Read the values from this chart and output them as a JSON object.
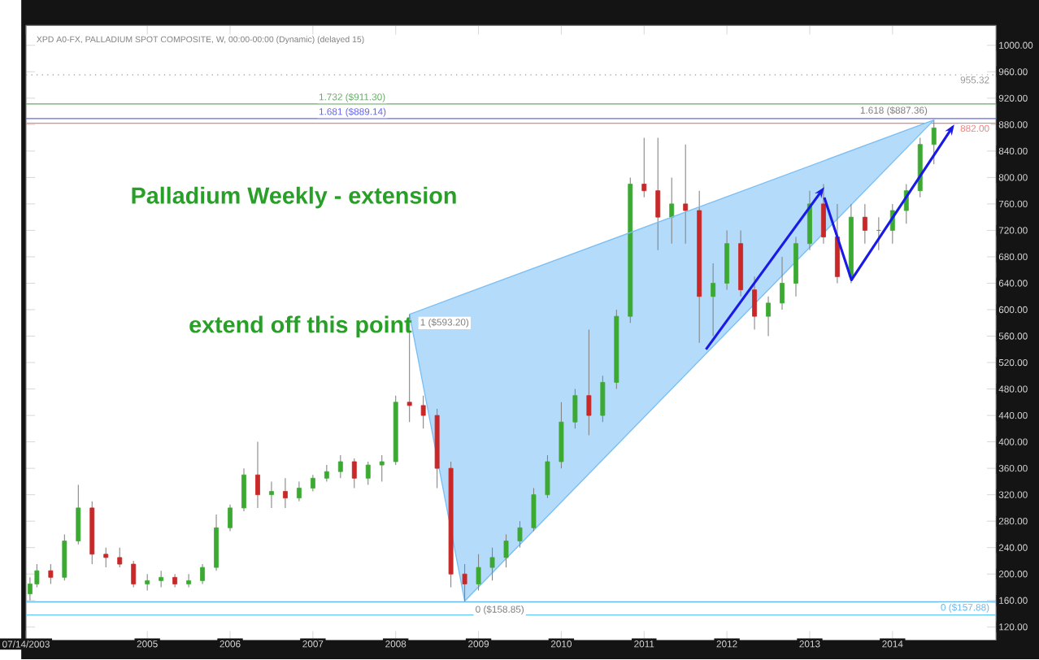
{
  "chart_data": {
    "type": "candlestick",
    "subtitle": "XPD A0-FX, PALLADIUM SPOT COMPOSITE, W, 00:00-00:00 (Dynamic) (delayed 15)",
    "x": [
      "2003-08",
      "2003-09",
      "2003-11",
      "2004-01",
      "2004-03",
      "2004-05",
      "2004-07",
      "2004-09",
      "2004-11",
      "2005-01",
      "2005-03",
      "2005-05",
      "2005-07",
      "2005-09",
      "2005-11",
      "2006-01",
      "2006-03",
      "2006-05",
      "2006-07",
      "2006-09",
      "2006-11",
      "2007-01",
      "2007-03",
      "2007-05",
      "2007-07",
      "2007-09",
      "2007-11",
      "2008-01",
      "2008-03",
      "2008-05",
      "2008-07",
      "2008-09",
      "2008-11",
      "2009-01",
      "2009-03",
      "2009-05",
      "2009-07",
      "2009-09",
      "2009-11",
      "2010-01",
      "2010-03",
      "2010-05",
      "2010-07",
      "2010-09",
      "2010-11",
      "2011-01",
      "2011-03",
      "2011-05",
      "2011-07",
      "2011-09",
      "2011-11",
      "2012-01",
      "2012-03",
      "2012-05",
      "2012-07",
      "2012-09",
      "2012-11",
      "2013-01",
      "2013-03",
      "2013-05",
      "2013-07",
      "2013-09",
      "2013-11",
      "2014-01",
      "2014-03",
      "2014-05",
      "2014-07"
    ],
    "ohlc": [
      [
        170,
        195,
        160,
        185
      ],
      [
        185,
        215,
        180,
        205
      ],
      [
        205,
        215,
        185,
        195
      ],
      [
        195,
        260,
        190,
        250
      ],
      [
        250,
        335,
        245,
        300
      ],
      [
        300,
        310,
        215,
        230
      ],
      [
        230,
        240,
        210,
        225
      ],
      [
        225,
        240,
        210,
        215
      ],
      [
        215,
        220,
        180,
        185
      ],
      [
        185,
        200,
        175,
        190
      ],
      [
        190,
        205,
        180,
        195
      ],
      [
        195,
        200,
        180,
        185
      ],
      [
        185,
        200,
        180,
        190
      ],
      [
        190,
        215,
        185,
        210
      ],
      [
        210,
        290,
        205,
        270
      ],
      [
        270,
        305,
        265,
        300
      ],
      [
        300,
        360,
        295,
        350
      ],
      [
        350,
        400,
        300,
        320
      ],
      [
        320,
        340,
        300,
        325
      ],
      [
        325,
        345,
        300,
        315
      ],
      [
        315,
        340,
        310,
        330
      ],
      [
        330,
        350,
        325,
        345
      ],
      [
        345,
        365,
        340,
        355
      ],
      [
        355,
        380,
        345,
        370
      ],
      [
        370,
        375,
        330,
        345
      ],
      [
        345,
        370,
        335,
        365
      ],
      [
        365,
        380,
        340,
        370
      ],
      [
        370,
        470,
        365,
        460
      ],
      [
        460,
        593.2,
        430,
        455
      ],
      [
        455,
        470,
        420,
        440
      ],
      [
        440,
        450,
        330,
        360
      ],
      [
        360,
        370,
        180,
        200
      ],
      [
        200,
        215,
        158.85,
        185
      ],
      [
        185,
        230,
        175,
        210
      ],
      [
        210,
        240,
        190,
        225
      ],
      [
        225,
        260,
        210,
        250
      ],
      [
        250,
        280,
        240,
        270
      ],
      [
        270,
        330,
        265,
        320
      ],
      [
        320,
        380,
        315,
        370
      ],
      [
        370,
        460,
        360,
        430
      ],
      [
        430,
        480,
        420,
        470
      ],
      [
        470,
        570,
        410,
        440
      ],
      [
        440,
        500,
        430,
        490
      ],
      [
        490,
        600,
        480,
        590
      ],
      [
        590,
        800,
        580,
        790
      ],
      [
        790,
        860,
        770,
        780
      ],
      [
        780,
        860,
        690,
        740
      ],
      [
        740,
        800,
        700,
        760
      ],
      [
        760,
        850,
        700,
        750
      ],
      [
        750,
        780,
        550,
        620
      ],
      [
        620,
        670,
        560,
        640
      ],
      [
        640,
        720,
        630,
        700
      ],
      [
        700,
        720,
        620,
        630
      ],
      [
        630,
        650,
        570,
        590
      ],
      [
        590,
        620,
        560,
        610
      ],
      [
        610,
        680,
        600,
        640
      ],
      [
        640,
        710,
        620,
        700
      ],
      [
        700,
        780,
        690,
        760
      ],
      [
        760,
        790,
        700,
        710
      ],
      [
        710,
        760,
        640,
        650
      ],
      [
        650,
        760,
        640,
        740
      ],
      [
        740,
        760,
        700,
        720
      ],
      [
        720,
        740,
        690,
        720
      ],
      [
        720,
        760,
        700,
        750
      ],
      [
        750,
        790,
        730,
        780
      ],
      [
        780,
        860,
        770,
        850
      ],
      [
        850,
        887.36,
        820,
        875
      ]
    ],
    "series": [
      {
        "type": "line",
        "color": "#78bef5",
        "x": [
          "2008-03",
          "2008-11",
          "2014-07"
        ],
        "values": [
          593,
          624,
          887
        ],
        "upper": [
          593,
          624,
          887
        ],
        "lower": [
          593,
          159,
          887
        ]
      }
    ],
    "xlim": [
      "2003-07-14",
      "2015-04"
    ],
    "xticks": [
      {
        "value": "2003-07-14",
        "label": "07/14/2003"
      },
      {
        "value": "2005-01",
        "label": "2005"
      },
      {
        "value": "2006-01",
        "label": "2006"
      },
      {
        "value": "2007-01",
        "label": "2007"
      },
      {
        "value": "2008-01",
        "label": "2008"
      },
      {
        "value": "2009-01",
        "label": "2009"
      },
      {
        "value": "2010-01",
        "label": "2010"
      },
      {
        "value": "2011-01",
        "label": "2011"
      },
      {
        "value": "2012-01",
        "label": "2012"
      },
      {
        "value": "2013-01",
        "label": "2013"
      },
      {
        "value": "2014-01",
        "label": "2014"
      }
    ],
    "ylim": [
      100,
      1030
    ],
    "yticks": [
      {
        "value": 120,
        "label": "120.00"
      },
      {
        "value": 160,
        "label": "160.00"
      },
      {
        "value": 200,
        "label": "200.00"
      },
      {
        "value": 240,
        "label": "240.00"
      },
      {
        "value": 280,
        "label": "280.00"
      },
      {
        "value": 320,
        "label": "320.00"
      },
      {
        "value": 360,
        "label": "360.00"
      },
      {
        "value": 400,
        "label": "400.00"
      },
      {
        "value": 440,
        "label": "440.00"
      },
      {
        "value": 480,
        "label": "480.00"
      },
      {
        "value": 520,
        "label": "520.00"
      },
      {
        "value": 560,
        "label": "560.00"
      },
      {
        "value": 600,
        "label": "600.00"
      },
      {
        "value": 640,
        "label": "640.00"
      },
      {
        "value": 680,
        "label": "680.00"
      },
      {
        "value": 720,
        "label": "720.00"
      },
      {
        "value": 760,
        "label": "760.00"
      },
      {
        "value": 800,
        "label": "800.00"
      },
      {
        "value": 840,
        "label": "840.00"
      },
      {
        "value": 880,
        "label": "880.00"
      },
      {
        "value": 920,
        "label": "920.00"
      },
      {
        "value": 960,
        "label": "960.00"
      },
      {
        "value": 1000,
        "label": "1000.00"
      }
    ],
    "ref_lines": [
      {
        "axis": "y",
        "value": 882,
        "label": "882.00",
        "color": "#f08080",
        "line_style": "solid"
      },
      {
        "axis": "y",
        "value": 911.3,
        "label": "1.732 ($911.30)",
        "color": "#66aa66",
        "line_style": "solid"
      },
      {
        "axis": "y",
        "value": 955.32,
        "label": "955.32",
        "color": "#999999",
        "line_style": "dotted"
      },
      {
        "axis": "y",
        "value": 889.14,
        "label": "1.681 ($889.14)",
        "color": "#6666ee",
        "line_style": "solid"
      },
      {
        "axis": "y",
        "value": 157.88,
        "label": "0 ($157.88)",
        "color": "#66b8f0",
        "line_style": "solid"
      },
      {
        "axis": "y",
        "value": 138,
        "color": "#66c8f0",
        "line_style": "solid"
      }
    ],
    "annotations": [
      "Palladium Weekly - extension",
      "extend off this point",
      {
        "text": "1 ($593.20)",
        "x": "2008-03",
        "y": 593.2
      },
      {
        "text": "0 ($158.85)",
        "x": "2008-11",
        "y": 158.85
      },
      {
        "text": "1.618 ($887.36)",
        "x": "2014-07",
        "y": 887.36
      }
    ]
  }
}
